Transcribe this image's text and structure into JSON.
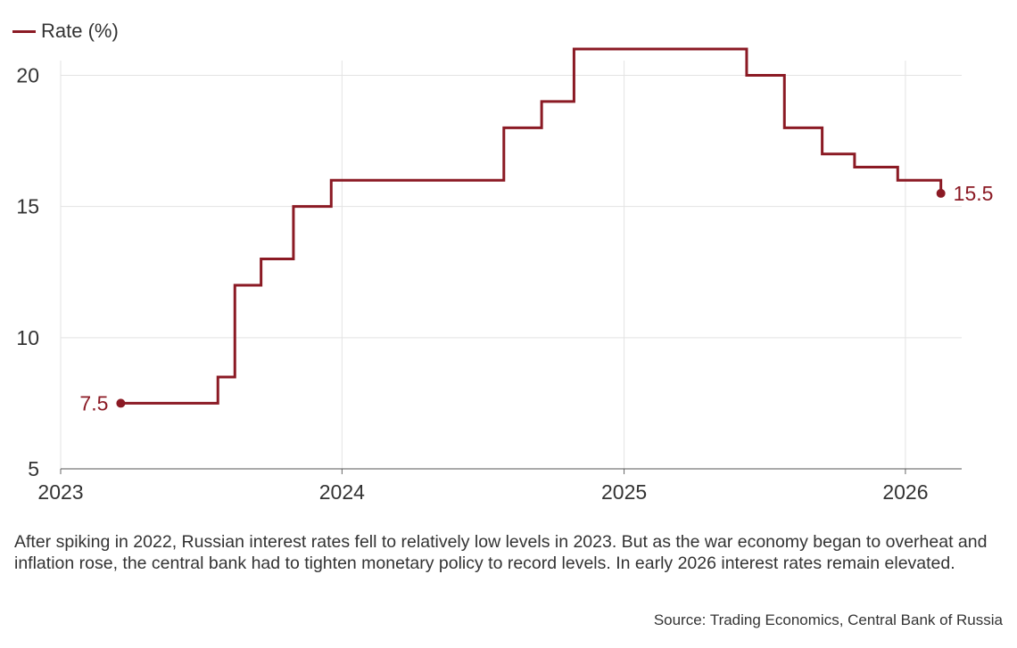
{
  "chart_data": {
    "type": "line",
    "step": true,
    "title": "",
    "xlabel": "",
    "ylabel": "",
    "legend": {
      "label": "Rate (%)",
      "placement": "top-left"
    },
    "color": "#8b1a24",
    "xlim": [
      "2023-01-01",
      "2026-03-15"
    ],
    "ylim": [
      5,
      21
    ],
    "x_ticks": [
      "2023",
      "2024",
      "2025",
      "2026"
    ],
    "y_ticks": [
      5,
      10,
      15,
      20
    ],
    "grid": true,
    "series": [
      {
        "name": "Rate (%)",
        "points": [
          [
            "2023-03-20",
            7.5
          ],
          [
            "2023-07-24",
            8.5
          ],
          [
            "2023-08-15",
            12
          ],
          [
            "2023-09-18",
            13
          ],
          [
            "2023-10-30",
            15
          ],
          [
            "2023-12-18",
            16
          ],
          [
            "2024-07-29",
            18
          ],
          [
            "2024-09-16",
            19
          ],
          [
            "2024-10-28",
            21
          ],
          [
            "2025-06-09",
            20
          ],
          [
            "2025-07-28",
            18
          ],
          [
            "2025-09-15",
            17
          ],
          [
            "2025-10-27",
            16.5
          ],
          [
            "2025-12-22",
            16
          ],
          [
            "2026-02-16",
            15.5
          ]
        ]
      }
    ],
    "annotations": [
      {
        "label": "7.5",
        "x": "2023-03-20",
        "y": 7.5,
        "side": "left"
      },
      {
        "label": "15.5",
        "x": "2026-02-16",
        "y": 15.5,
        "side": "right"
      }
    ]
  },
  "caption": "After spiking in 2022, Russian interest rates fell to relatively low levels in 2023. But as the war economy began to overheat and inflation rose, the central bank had to tighten monetary policy to record levels. In early 2026 interest rates remain elevated.",
  "source": "Source: Trading Economics, Central Bank of Russia"
}
